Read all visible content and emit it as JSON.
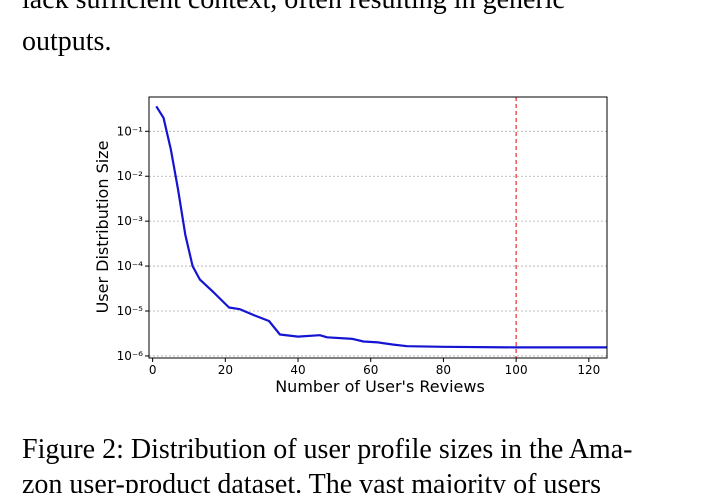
{
  "text_before": [
    "lack sufficient context, often resulting in generic",
    "outputs."
  ],
  "chart_data": {
    "type": "line",
    "xlabel": "Number of User's Reviews",
    "ylabel": "User Distribution Size",
    "x": [
      1,
      3,
      5,
      7,
      9,
      11,
      13,
      17,
      21,
      24,
      28,
      32,
      35,
      40,
      46,
      48,
      55,
      58,
      62,
      66,
      70,
      80,
      100,
      125
    ],
    "series": [
      {
        "color": "#1414d2",
        "values": [
          0.36,
          0.2,
          0.04,
          0.005,
          0.0005,
          0.0001,
          5e-05,
          2.5e-05,
          1.2e-05,
          1.1e-05,
          8e-06,
          6e-06,
          3e-06,
          2.7e-06,
          2.9e-06,
          2.6e-06,
          2.4e-06,
          2.1e-06,
          2e-06,
          1.8e-06,
          1.65e-06,
          1.6e-06,
          1.55e-06,
          1.55e-06
        ]
      }
    ],
    "xlim": [
      -1,
      125
    ],
    "ylim": [
      9e-07,
      0.58
    ],
    "log_y": true,
    "xticks": [
      0,
      20,
      40,
      60,
      80,
      100,
      120
    ],
    "yticks": [
      {
        "value": 1e-06,
        "label": "10⁻⁶"
      },
      {
        "value": 1e-05,
        "label": "10⁻⁵"
      },
      {
        "value": 0.0001,
        "label": "10⁻⁴"
      },
      {
        "value": 0.001,
        "label": "10⁻³"
      },
      {
        "value": 0.01,
        "label": "10⁻²"
      },
      {
        "value": 0.1,
        "label": "10⁻¹"
      }
    ],
    "grid": true,
    "vline": 100,
    "vline_color": "#e03030"
  },
  "caption": [
    "Figure 2: Distribution of user profile sizes in the Ama-",
    "zon user-product dataset.  The vast majority of users"
  ]
}
